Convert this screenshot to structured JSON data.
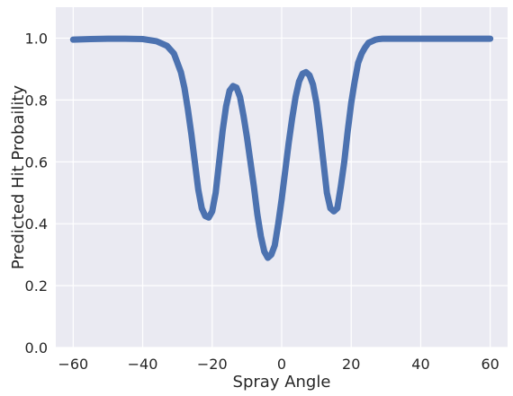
{
  "chart_data": {
    "type": "line",
    "xlabel": "Spray Angle",
    "ylabel": "Predicted Hit Probaility",
    "xlim": [
      -65,
      65
    ],
    "ylim": [
      0,
      1.1
    ],
    "x_ticks": [
      -60,
      -40,
      -20,
      0,
      20,
      40,
      60
    ],
    "x_tick_labels": [
      "−60",
      "−40",
      "−20",
      "0",
      "20",
      "40",
      "60"
    ],
    "y_ticks": [
      0.0,
      0.2,
      0.4,
      0.6,
      0.8,
      1.0
    ],
    "y_tick_labels": [
      "0.0",
      "0.2",
      "0.4",
      "0.6",
      "0.8",
      "1.0"
    ],
    "grid": true,
    "background_color": "#eaeaf2",
    "grid_color": "#ffffff",
    "series": [
      {
        "color": "#4c72b0",
        "x": [
          -60,
          -55,
          -50,
          -45,
          -40,
          -36,
          -33,
          -31,
          -29,
          -28,
          -27,
          -26,
          -25,
          -24,
          -23,
          -22,
          -21,
          -20,
          -19,
          -18,
          -17,
          -16,
          -15,
          -14,
          -13,
          -12,
          -11,
          -10,
          -9,
          -8,
          -7,
          -6,
          -5,
          -4,
          -3,
          -2,
          -1,
          0,
          1,
          2,
          3,
          4,
          5,
          6,
          7,
          8,
          9,
          10,
          11,
          12,
          13,
          14,
          15,
          16,
          17,
          18,
          19,
          20,
          21,
          22,
          23,
          24,
          25,
          26,
          27,
          28,
          29,
          31,
          33,
          36,
          40,
          45,
          50,
          55,
          60
        ],
        "y": [
          0.995,
          0.997,
          0.998,
          0.998,
          0.997,
          0.99,
          0.975,
          0.95,
          0.89,
          0.84,
          0.77,
          0.69,
          0.6,
          0.51,
          0.45,
          0.425,
          0.42,
          0.44,
          0.5,
          0.6,
          0.7,
          0.78,
          0.83,
          0.845,
          0.84,
          0.81,
          0.75,
          0.68,
          0.6,
          0.52,
          0.43,
          0.36,
          0.31,
          0.29,
          0.3,
          0.33,
          0.4,
          0.48,
          0.57,
          0.66,
          0.74,
          0.81,
          0.86,
          0.885,
          0.89,
          0.88,
          0.85,
          0.79,
          0.7,
          0.6,
          0.5,
          0.45,
          0.44,
          0.45,
          0.52,
          0.6,
          0.7,
          0.79,
          0.86,
          0.92,
          0.95,
          0.97,
          0.985,
          0.99,
          0.995,
          0.997,
          0.998,
          0.998,
          0.998,
          0.998,
          0.998,
          0.998,
          0.998,
          0.998,
          0.998
        ]
      }
    ]
  }
}
